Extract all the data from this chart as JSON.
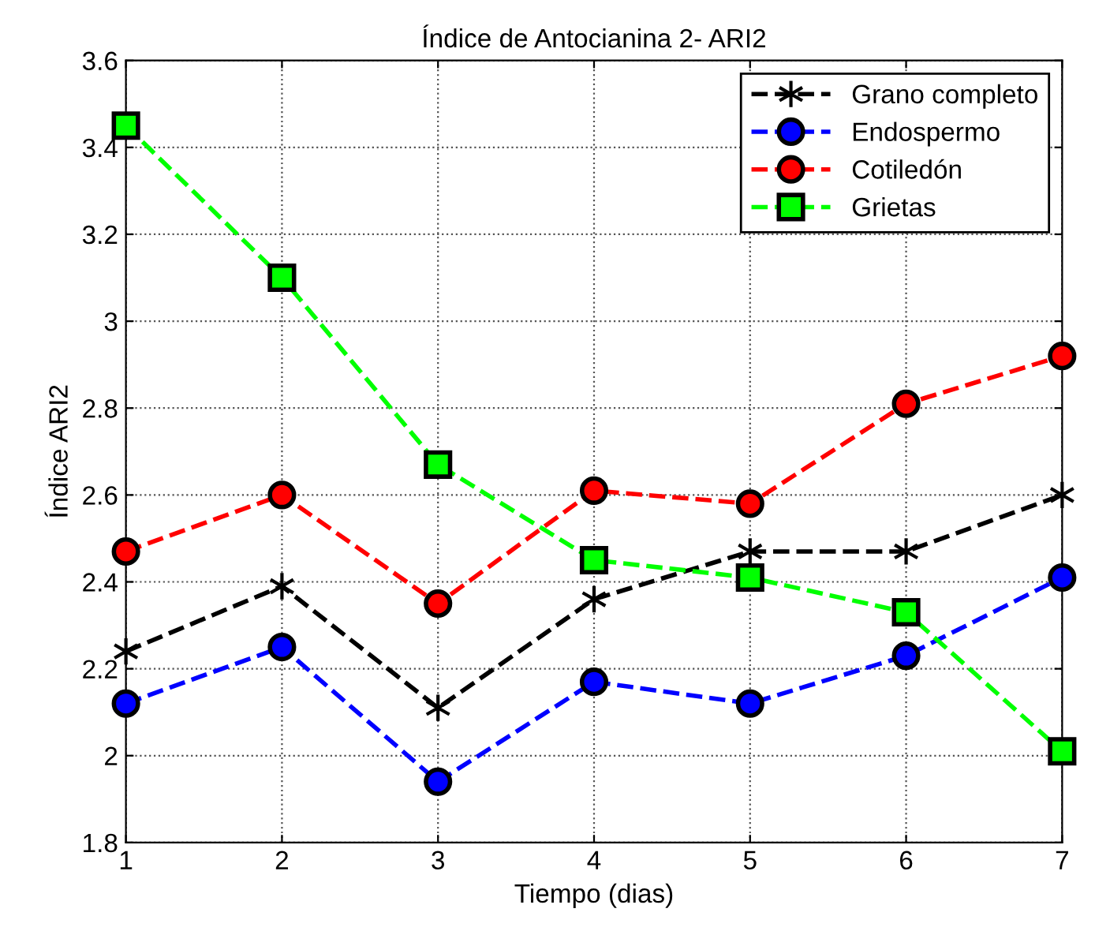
{
  "chart_data": {
    "type": "line",
    "title": "Índice de Antocianina 2- ARI2",
    "xlabel": "Tiempo (dias)",
    "ylabel": "Índice ARI2",
    "x": [
      1,
      2,
      3,
      4,
      5,
      6,
      7
    ],
    "series": [
      {
        "name": "Grano completo",
        "color": "#000000",
        "marker": "cross",
        "values": [
          2.24,
          2.39,
          2.11,
          2.36,
          2.47,
          2.47,
          2.6
        ]
      },
      {
        "name": "Endospermo",
        "color": "#0000ff",
        "marker": "circle",
        "values": [
          2.12,
          2.25,
          1.94,
          2.17,
          2.12,
          2.23,
          2.41
        ]
      },
      {
        "name": "Cotiledón",
        "color": "#ff0000",
        "marker": "circle",
        "values": [
          2.47,
          2.6,
          2.35,
          2.61,
          2.58,
          2.81,
          2.92
        ]
      },
      {
        "name": "Grietas",
        "color": "#00ff00",
        "marker": "square",
        "values": [
          3.45,
          3.1,
          2.67,
          2.45,
          2.41,
          2.33,
          2.01
        ]
      }
    ],
    "xlim": [
      1,
      7
    ],
    "ylim": [
      1.8,
      3.6
    ],
    "xticks": [
      1,
      2,
      3,
      4,
      5,
      6,
      7
    ],
    "yticks": [
      1.8,
      2,
      2.2,
      2.4,
      2.6,
      2.8,
      3,
      3.2,
      3.4,
      3.6
    ],
    "grid": true,
    "legend": "top right",
    "line_style": "dashed"
  }
}
